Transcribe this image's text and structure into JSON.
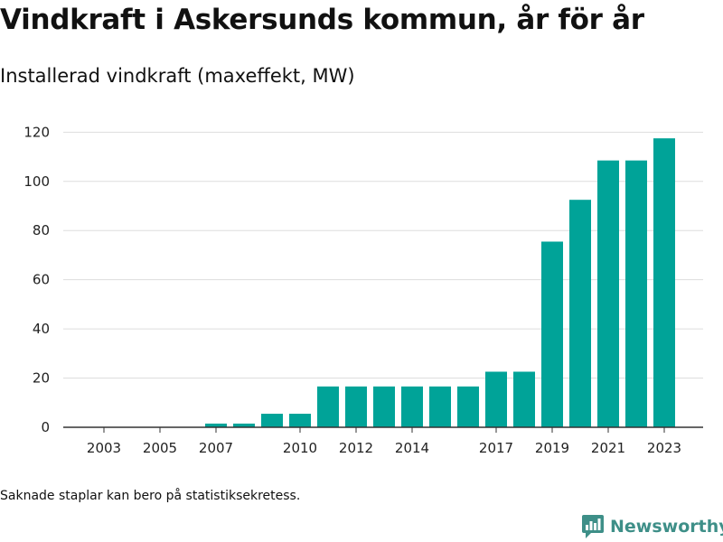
{
  "header": {
    "title": "Vindkraft i Askersunds kommun, år för år",
    "subtitle": "Installerad vindkraft (maxeffekt, MW)"
  },
  "footer": {
    "note": "Saknade staplar kan bero på statistiksekretess.",
    "brand_name": "Newsworthy",
    "brand_icon": "bar-chart-logo-icon"
  },
  "colors": {
    "bar": "#00a398",
    "grid": "#dddddd",
    "axis": "#333333",
    "brand": "#3e8f88"
  },
  "chart_data": {
    "type": "bar",
    "title": "Vindkraft i Askersunds kommun, år för år",
    "subtitle": "Installerad vindkraft (maxeffekt, MW)",
    "xlabel": "",
    "ylabel": "",
    "categories": [
      "2003",
      "2004",
      "2005",
      "2006",
      "2007",
      "2008",
      "2009",
      "2010",
      "2011",
      "2012",
      "2013",
      "2014",
      "2015",
      "2016",
      "2017",
      "2018",
      "2019",
      "2020",
      "2021",
      "2022",
      "2023"
    ],
    "values": [
      0,
      0,
      0,
      0,
      1.5,
      1.5,
      5.5,
      5.5,
      16.6,
      16.6,
      16.6,
      16.6,
      16.6,
      16.6,
      22.6,
      22.6,
      75.5,
      92.5,
      108.5,
      108.5,
      117.5
    ],
    "xticks": [
      "2003",
      "2005",
      "2007",
      "2010",
      "2012",
      "2014",
      "2017",
      "2019",
      "2021",
      "2023"
    ],
    "yticks": [
      0,
      20,
      40,
      60,
      80,
      100,
      120
    ],
    "ylim": [
      0,
      126
    ],
    "grid": true,
    "legend": "none"
  }
}
